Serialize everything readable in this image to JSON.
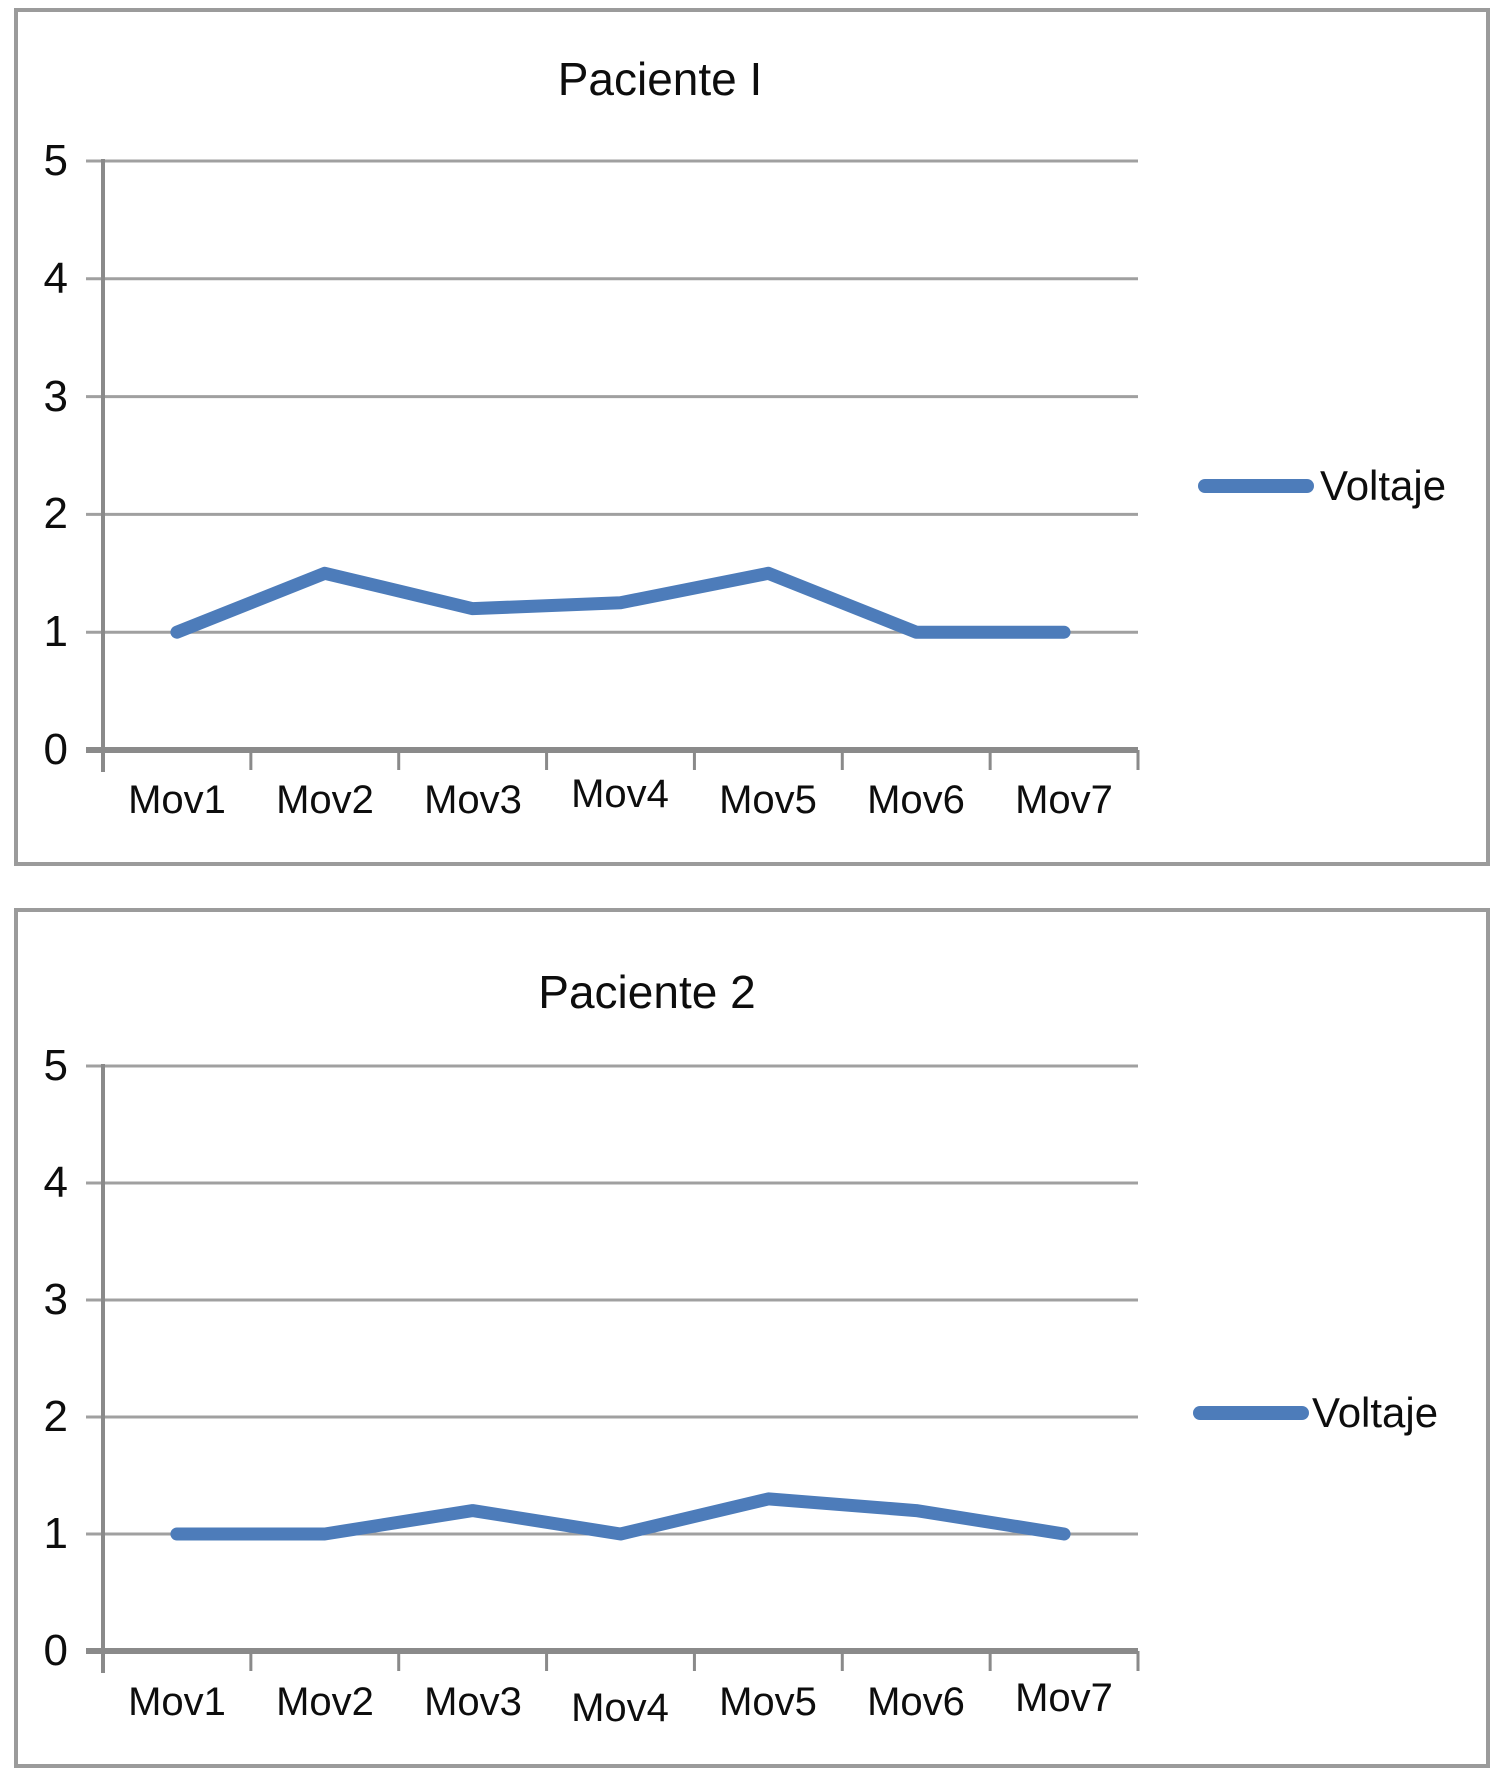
{
  "colors": {
    "line": "#4d7cba",
    "gridline": "#a0a0a0",
    "axis": "#8a8a8a",
    "frame_border": "#9b9b9b",
    "background": "#ffffff",
    "text": "#0d0d0d"
  },
  "chart_data": [
    {
      "type": "line",
      "title": "Paciente I",
      "categories": [
        "Mov1",
        "Mov2",
        "Mov3",
        "Mov4",
        "Mov5",
        "Mov6",
        "Mov7"
      ],
      "series": [
        {
          "name": "Voltaje",
          "values": [
            1,
            1.5,
            1.2,
            1.25,
            1.5,
            1,
            1
          ]
        }
      ],
      "xlabel": "",
      "ylabel": "",
      "ylim": [
        0,
        5
      ],
      "y_ticks": [
        "5",
        "4",
        "3",
        "2",
        "1",
        "0"
      ],
      "grid": true,
      "legend_position": "right",
      "line_color": "#4d7cba"
    },
    {
      "type": "line",
      "title": "Paciente 2",
      "categories": [
        "Mov1",
        "Mov2",
        "Mov3",
        "Mov4",
        "Mov5",
        "Mov6",
        "Mov7"
      ],
      "series": [
        {
          "name": "Voltaje",
          "values": [
            1,
            1,
            1.2,
            1,
            1.3,
            1.2,
            1
          ]
        }
      ],
      "xlabel": "",
      "ylabel": "",
      "ylim": [
        0,
        5
      ],
      "y_ticks": [
        "5",
        "4",
        "3",
        "2",
        "1",
        "0"
      ],
      "grid": true,
      "legend_position": "right",
      "line_color": "#4d7cba"
    }
  ]
}
